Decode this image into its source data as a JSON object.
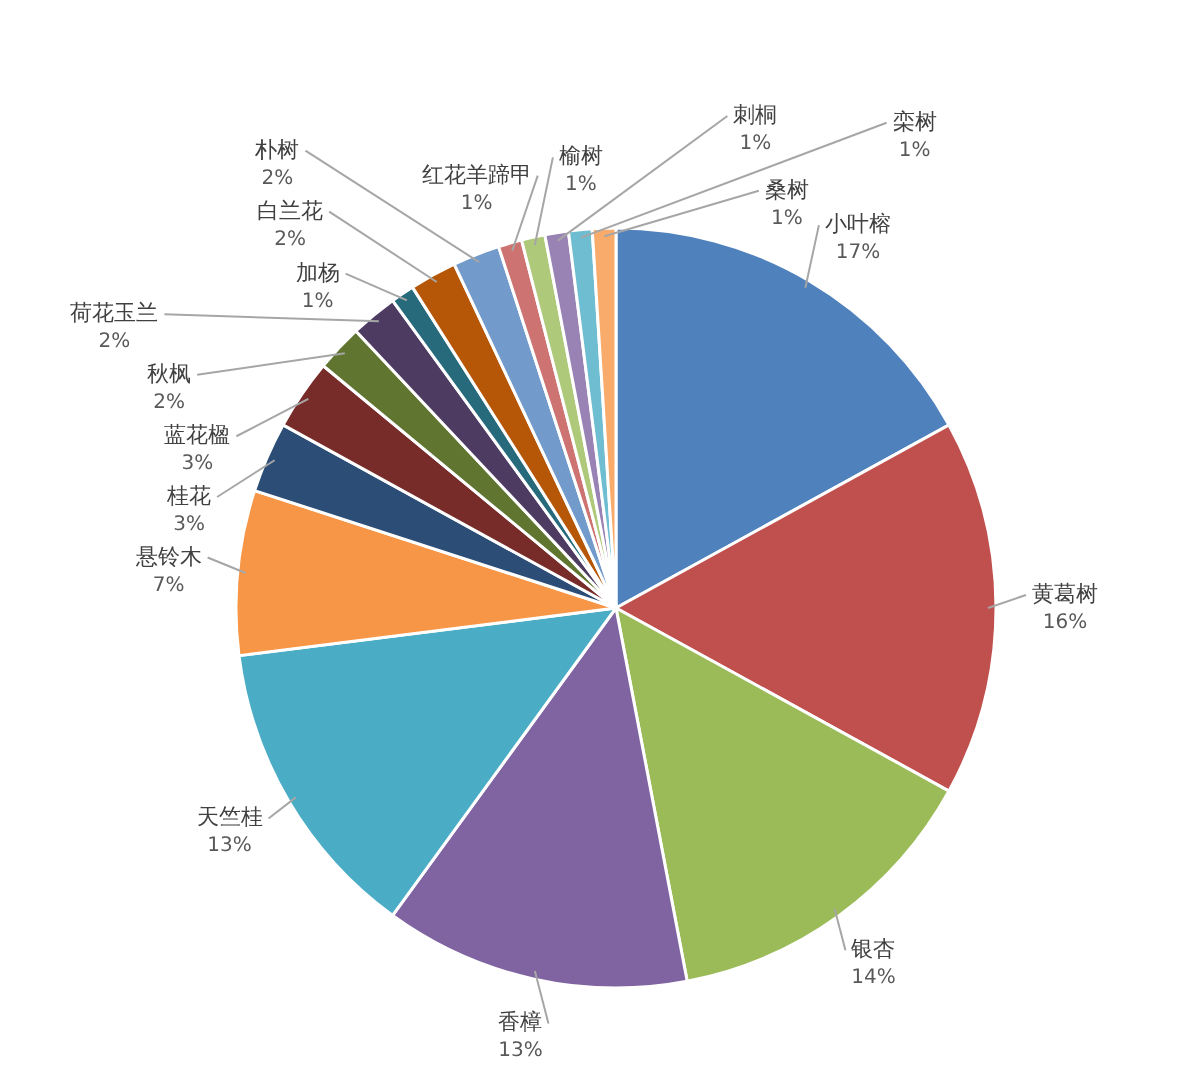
{
  "chart_data": {
    "type": "pie",
    "categories": [
      "小叶榕",
      "黄葛树",
      "银杏",
      "香樟",
      "天竺桂",
      "悬铃木",
      "桂花",
      "蓝花楹",
      "秋枫",
      "荷花玉兰",
      "加杨",
      "白兰花",
      "朴树",
      "红花羊蹄甲",
      "榆树",
      "刺桐",
      "栾树",
      "桑树"
    ],
    "values": [
      17,
      16,
      14,
      13,
      13,
      7,
      3,
      3,
      2,
      2,
      1,
      2,
      2,
      1,
      1,
      1,
      1,
      1
    ],
    "value_labels": [
      "17%",
      "16%",
      "14%",
      "13%",
      "13%",
      "7%",
      "3%",
      "3%",
      "2%",
      "2%",
      "1%",
      "2%",
      "2%",
      "1%",
      "1%",
      "1%",
      "1%",
      "1%"
    ],
    "colors": [
      "#4f81bd",
      "#c0504d",
      "#9bbb59",
      "#8064a2",
      "#4bacc6",
      "#f79646",
      "#2c4d75",
      "#772c2a",
      "#5f7530",
      "#4d3b62",
      "#276a7c",
      "#b65708",
      "#729aca",
      "#cd7371",
      "#afc97a",
      "#9983b5",
      "#6fbdd1",
      "#f9ab6b"
    ]
  }
}
